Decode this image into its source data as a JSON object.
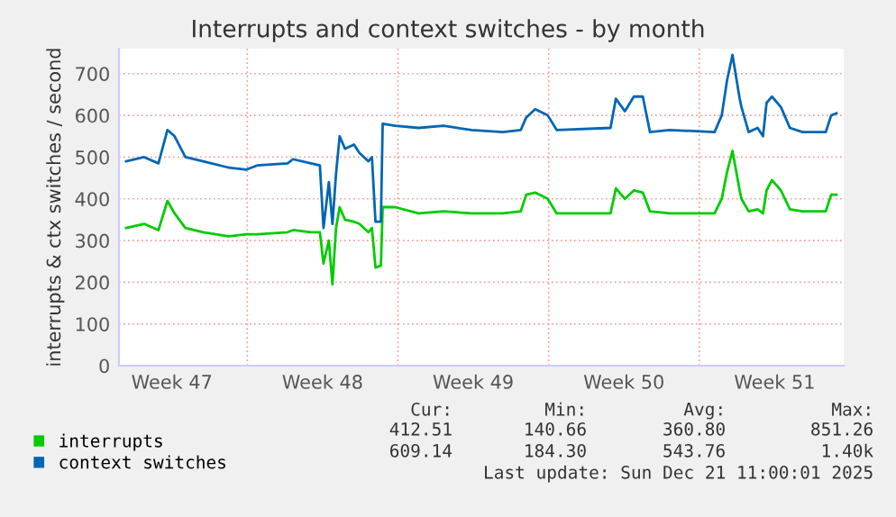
{
  "chart_data": {
    "type": "line",
    "title": "Interrupts and context switches - by month",
    "ylabel": "interrupts & ctx switches / second",
    "x": [
      "2025-11-18T09:00",
      "2025-11-19T05:00",
      "2025-11-19T21:00",
      "2025-11-20T07:00",
      "2025-11-20T15:00",
      "2025-11-21T03:00",
      "2025-11-21T23:00",
      "2025-11-23T03:00",
      "2025-11-23T23:00",
      "2025-11-24T11:00",
      "2025-11-25T21:00",
      "2025-11-26T03:00",
      "2025-11-26T23:00",
      "2025-11-27T09:00",
      "2025-11-27T13:00",
      "2025-11-27T19:00",
      "2025-11-27T23:00",
      "2025-11-28T03:00",
      "2025-11-28T07:00",
      "2025-11-28T13:00",
      "2025-11-28T23:00",
      "2025-11-29T05:00",
      "2025-11-29T15:00",
      "2025-11-29T19:00",
      "2025-11-29T23:00",
      "2025-11-30T05:00",
      "2025-11-30T07:00",
      "2025-11-30T21:00",
      "2025-12-01T23:00",
      "2025-12-03T03:00",
      "2025-12-04T10:00",
      "2025-12-05T21:00",
      "2025-12-06T17:00",
      "2025-12-06T23:00",
      "2025-12-07T09:00",
      "2025-12-07T23:00",
      "2025-12-08T09:00",
      "2025-12-10T21:00",
      "2025-12-11T03:00",
      "2025-12-11T13:00",
      "2025-12-11T23:00",
      "2025-12-12T09:00",
      "2025-12-12T17:00",
      "2025-12-13T15:00",
      "2025-12-15T17:00",
      "2025-12-16T01:00",
      "2025-12-16T07:00",
      "2025-12-16T13:00",
      "2025-12-16T21:00",
      "2025-12-16T23:00",
      "2025-12-17T07:00",
      "2025-12-17T17:00",
      "2025-12-17T23:00",
      "2025-12-18T03:00",
      "2025-12-18T09:00",
      "2025-12-18T19:00",
      "2025-12-19T05:00",
      "2025-12-19T19:00",
      "2025-12-20T21:00",
      "2025-12-21T03:00",
      "2025-12-21T09:00"
    ],
    "series": [
      {
        "name": "interrupts",
        "color": "#00cc00",
        "values": [
          330,
          340,
          325,
          395,
          365,
          330,
          320,
          310,
          315,
          315,
          320,
          325,
          320,
          320,
          245,
          300,
          195,
          330,
          380,
          350,
          345,
          340,
          320,
          330,
          235,
          240,
          380,
          380,
          365,
          370,
          365,
          365,
          370,
          410,
          415,
          400,
          365,
          365,
          425,
          400,
          420,
          415,
          370,
          365,
          365,
          400,
          465,
          515,
          420,
          400,
          370,
          375,
          365,
          420,
          445,
          420,
          375,
          370,
          370,
          410,
          410
        ]
      },
      {
        "name": "context switches",
        "color": "#0066b3",
        "values": [
          490,
          500,
          485,
          565,
          550,
          500,
          490,
          475,
          470,
          480,
          485,
          495,
          485,
          480,
          330,
          440,
          340,
          460,
          550,
          520,
          530,
          510,
          490,
          500,
          345,
          345,
          580,
          575,
          570,
          575,
          565,
          560,
          565,
          595,
          615,
          600,
          565,
          570,
          640,
          610,
          645,
          645,
          560,
          565,
          560,
          600,
          685,
          745,
          640,
          620,
          560,
          570,
          550,
          630,
          645,
          620,
          570,
          560,
          560,
          600,
          605
        ]
      }
    ],
    "xlim": [
      "2025-11-18T01:00",
      "2025-12-21T17:00"
    ],
    "xticks": [
      {
        "value": "2025-11-20T12:00",
        "label": "Week 47"
      },
      {
        "value": "2025-11-24T00:00",
        "label": null
      },
      {
        "value": "2025-11-27T12:00",
        "label": "Week 48"
      },
      {
        "value": "2025-12-01T00:00",
        "label": null
      },
      {
        "value": "2025-12-04T12:00",
        "label": "Week 49"
      },
      {
        "value": "2025-12-08T00:00",
        "label": null
      },
      {
        "value": "2025-12-11T12:00",
        "label": "Week 50"
      },
      {
        "value": "2025-12-15T00:00",
        "label": null
      },
      {
        "value": "2025-12-18T12:00",
        "label": "Week 51"
      }
    ],
    "ylim": [
      0,
      760
    ],
    "yticks": [
      0,
      100,
      200,
      300,
      400,
      500,
      600,
      700
    ],
    "grid": true,
    "legend": "bottom left",
    "annotations": [
      "Cur:",
      "Min:",
      "Avg:",
      "Max:",
      "412.51",
      "140.66",
      "360.80",
      "851.26",
      "609.14",
      "184.30",
      "543.76",
      "1.40k",
      "Last update: Sun Dec 21 11:00:01 2025"
    ]
  }
}
